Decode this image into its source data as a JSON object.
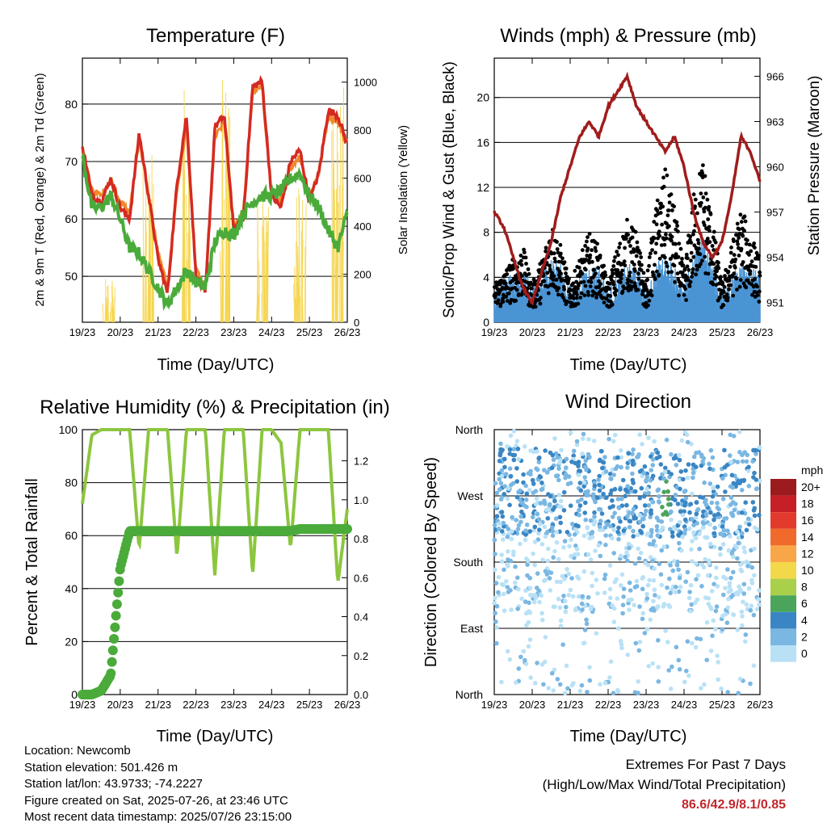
{
  "x_ticks": [
    "19/23",
    "20/23",
    "21/23",
    "22/23",
    "23/23",
    "24/23",
    "25/23",
    "26/23"
  ],
  "panels": {
    "temperature": {
      "title": "Temperature (F)",
      "xlabel": "Time (Day/UTC)",
      "ylabel": "2m & 9m T (Red, Orange) & 2m Td (Green)",
      "ylabel_right": "Solar Insolation (Yellow)",
      "y_ticks": [
        "50",
        "60",
        "70",
        "80"
      ],
      "y2_ticks": [
        "0",
        "200",
        "400",
        "600",
        "800",
        "1000"
      ]
    },
    "winds": {
      "title": "Winds (mph) & Pressure (mb)",
      "xlabel": "Time (Day/UTC)",
      "ylabel": "Sonic/Prop Wind & Gust (Blue, Black)",
      "ylabel_right": "Station Pressure (Maroon)",
      "y_ticks": [
        "0",
        "4",
        "8",
        "12",
        "16",
        "20"
      ],
      "y2_ticks": [
        "951",
        "954",
        "957",
        "960",
        "963",
        "966"
      ]
    },
    "humidity": {
      "title": "Relative Humidity (%) & Precipitation (in)",
      "xlabel": "Time (Day/UTC)",
      "ylabel": "Percent & Total Rainfall",
      "y_ticks": [
        "0",
        "20",
        "40",
        "60",
        "80",
        "100"
      ],
      "y2_ticks": [
        "0.0",
        "0.2",
        "0.4",
        "0.6",
        "0.8",
        "1.0",
        "1.2"
      ]
    },
    "wind_direction": {
      "title": "Wind Direction",
      "xlabel": "Time (Day/UTC)",
      "ylabel": "Direction (Colored By Speed)",
      "y_ticks": [
        "North",
        "East",
        "South",
        "West",
        "North"
      ],
      "legend_title": "mph",
      "legend_labels": [
        "20+",
        "18",
        "16",
        "14",
        "12",
        "10",
        "8",
        "6",
        "4",
        "2",
        "0"
      ],
      "legend_colors": [
        "#9b1b1e",
        "#c62026",
        "#e23a2c",
        "#f06a2b",
        "#f9a648",
        "#f3d84a",
        "#a9cf4b",
        "#4aa55a",
        "#3a86c4",
        "#7ab7e2",
        "#b9e1f6"
      ]
    }
  },
  "info": {
    "location": "Location: Newcomb",
    "elevation": "Station elevation: 501.426 m",
    "latlon": "Station lat/lon: 43.9733; -74.2227",
    "created": "Figure created on Sat, 2025-07-26, at 23:46 UTC",
    "recent": "Most recent data timestamp: 2025/07/26 23:15:00"
  },
  "extremes": {
    "title": "Extremes For Past 7 Days",
    "subtitle": "(High/Low/Max Wind/Total Precipitation)",
    "values": "86.6/42.9/8.1/0.85"
  },
  "colors": {
    "temp_2m": "#d42a22",
    "temp_9m": "#f08a2a",
    "dewpoint": "#4aab3a",
    "solar": "#f5d44a",
    "wind": "#4a94d4",
    "gust": "#000000",
    "pressure": "#a01c1c",
    "rh": "#8cc63f",
    "precip": "#4aab3a"
  },
  "chart_data": [
    {
      "type": "line",
      "title": "Temperature (F)",
      "xlabel": "Time (Day/UTC)",
      "ylabel": "2m & 9m T (Red, Orange) & 2m Td (Green)",
      "ylabel_right": "Solar Insolation (Yellow)",
      "ylim": [
        42,
        88
      ],
      "y2lim": [
        0,
        1100
      ],
      "x_day_offsets": [
        0,
        0.25,
        0.5,
        0.75,
        1,
        1.25,
        1.5,
        1.75,
        2,
        2.25,
        2.5,
        2.75,
        3,
        3.25,
        3.5,
        3.75,
        4,
        4.25,
        4.5,
        4.75,
        5,
        5.25,
        5.5,
        5.75,
        6,
        6.25,
        6.5,
        6.75,
        7
      ],
      "series": [
        {
          "values": [
            73,
            64,
            63,
            67,
            62,
            60,
            75,
            64,
            53,
            47,
            66,
            78,
            50,
            47,
            76,
            78,
            58,
            60,
            83,
            84,
            64,
            62,
            70,
            72,
            63,
            68,
            79,
            78,
            73
          ]
        },
        {
          "values": [
            72,
            65,
            64,
            67,
            63,
            61,
            74,
            64,
            54,
            48,
            65,
            76,
            51,
            48,
            74,
            77,
            59,
            61,
            82,
            83,
            64,
            63,
            69,
            71,
            64,
            68,
            78,
            77,
            73
          ]
        },
        {
          "values": [
            71,
            62,
            62,
            64,
            60,
            55,
            54,
            51,
            48,
            45,
            48,
            51,
            49,
            48,
            56,
            58,
            57,
            61,
            63,
            64,
            64,
            65,
            67,
            68,
            64,
            62,
            58,
            55,
            61
          ]
        }
      ],
      "solar_peaks": [
        {
          "day": 0.7,
          "value": 200
        },
        {
          "day": 1.75,
          "value": 700
        },
        {
          "day": 2.75,
          "value": 980
        },
        {
          "day": 3.75,
          "value": 1050
        },
        {
          "day": 4.75,
          "value": 580
        },
        {
          "day": 5.75,
          "value": 600
        },
        {
          "day": 6.75,
          "value": 1010
        }
      ]
    },
    {
      "type": "scatter",
      "title": "Winds (mph) & Pressure (mb)",
      "xlabel": "Time (Day/UTC)",
      "ylabel": "Sonic/Prop Wind & Gust (Blue, Black)",
      "ylabel_right": "Station Pressure (Maroon)",
      "ylim": [
        0,
        23.5
      ],
      "y2lim": [
        949.7,
        967.2
      ],
      "x_day_offsets": [
        0,
        0.25,
        0.5,
        0.75,
        1,
        1.25,
        1.5,
        1.75,
        2,
        2.25,
        2.5,
        2.75,
        3,
        3.25,
        3.5,
        3.75,
        4,
        4.25,
        4.5,
        4.75,
        5,
        5.25,
        5.5,
        5.75,
        6,
        6.25,
        6.5,
        6.75,
        7
      ],
      "series": [
        {
          "values": [
            1,
            2,
            2,
            3,
            1,
            2,
            4,
            3,
            1,
            2,
            3,
            3,
            1,
            2,
            3,
            3,
            1,
            3,
            4,
            3,
            1,
            4,
            6,
            3,
            1,
            2,
            4,
            3,
            2
          ]
        },
        {
          "values": [
            3,
            4,
            5,
            6,
            3,
            5,
            8,
            6,
            3,
            5,
            7,
            6,
            3,
            6,
            8,
            7,
            3,
            9,
            12,
            9,
            4,
            10,
            13,
            8,
            3,
            6,
            9,
            7,
            5
          ]
        },
        {
          "values": [
            957,
            956,
            954,
            952,
            951,
            953,
            955,
            958,
            960,
            962,
            963,
            962,
            964,
            965,
            966,
            964,
            963,
            962,
            961,
            962,
            960,
            957,
            955,
            954,
            955,
            958,
            962,
            961,
            959
          ]
        }
      ]
    },
    {
      "type": "line",
      "title": "Relative Humidity (%) & Precipitation (in)",
      "xlabel": "Time (Day/UTC)",
      "ylabel": "Percent & Total Rainfall",
      "ylim": [
        0,
        100
      ],
      "y2lim": [
        0,
        1.36
      ],
      "x_day_offsets": [
        0,
        0.25,
        0.5,
        0.75,
        1,
        1.25,
        1.5,
        1.75,
        2,
        2.25,
        2.5,
        2.75,
        3,
        3.25,
        3.5,
        3.75,
        4,
        4.25,
        4.5,
        4.75,
        5,
        5.25,
        5.5,
        5.75,
        6,
        6.25,
        6.5,
        6.75,
        7
      ],
      "series": [
        {
          "values": [
            72,
            98,
            100,
            100,
            100,
            100,
            55,
            100,
            100,
            100,
            52,
            100,
            100,
            100,
            45,
            100,
            100,
            100,
            45,
            100,
            100,
            95,
            55,
            100,
            100,
            100,
            100,
            42,
            70
          ]
        },
        {
          "values": [
            0,
            0,
            0.02,
            0.1,
            0.65,
            0.84,
            0.84,
            0.84,
            0.84,
            0.84,
            0.84,
            0.84,
            0.84,
            0.84,
            0.84,
            0.84,
            0.84,
            0.84,
            0.84,
            0.84,
            0.84,
            0.84,
            0.84,
            0.85,
            0.85,
            0.85,
            0.85,
            0.85,
            0.85
          ]
        }
      ]
    },
    {
      "type": "scatter",
      "title": "Wind Direction",
      "xlabel": "Time (Day/UTC)",
      "ylabel": "Direction (Colored By Speed)",
      "y_categories": [
        "North",
        "East",
        "South",
        "West",
        "North"
      ],
      "ylim": [
        0,
        360
      ],
      "colorbar_label": "mph",
      "colorbar_ticks": [
        "20+",
        "18",
        "16",
        "14",
        "12",
        "10",
        "8",
        "6",
        "4",
        "2",
        "0"
      ]
    }
  ]
}
